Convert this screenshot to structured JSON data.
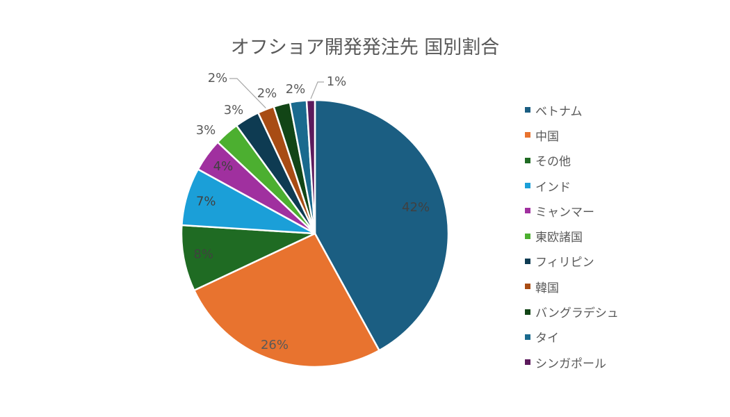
{
  "chart_data": {
    "type": "pie",
    "title": "オフショア開発発注先 国別割合",
    "categories": [
      "ベトナム",
      "中国",
      "その他",
      "インド",
      "ミャンマー",
      "東欧諸国",
      "フィリピン",
      "韓国",
      "バングラデシュ",
      "タイ",
      "シンガポール"
    ],
    "values": [
      42,
      26,
      8,
      7,
      4,
      3,
      3,
      2,
      2,
      2,
      1
    ],
    "labels": [
      "42%",
      "26%",
      "8%",
      "7%",
      "4%",
      "3%",
      "3%",
      "2%",
      "2%",
      "2%",
      "1%"
    ],
    "colors": [
      "#1b5e82",
      "#e8732f",
      "#1f6b23",
      "#1b9fd8",
      "#a0309f",
      "#4caf30",
      "#0e3b52",
      "#a84c14",
      "#124516",
      "#1a6a8e",
      "#5c1a5c"
    ],
    "start_angle": "top",
    "direction": "clockwise",
    "legend_position": "right",
    "unit": "%"
  }
}
